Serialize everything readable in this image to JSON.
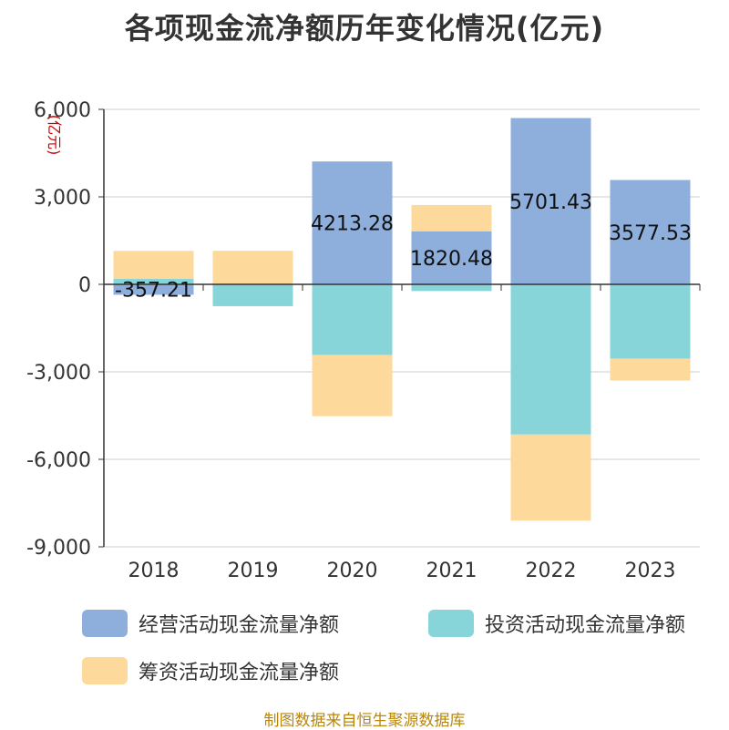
{
  "page_title": "各项现金流净额历年变化情况(亿元)",
  "source_note": "制图数据来自恒生聚源数据库",
  "colors": {
    "operating": "#8eaedb",
    "investing": "#87d4d9",
    "financing": "#fdd99b",
    "axis": "#333333",
    "grid": "#cccccc",
    "unit": "#cc0000"
  },
  "chart_data": {
    "type": "bar",
    "stacked": true,
    "title": "各项现金流净额历年变化情况(亿元)",
    "unit_label": "(亿元)",
    "categories": [
      "2018",
      "2019",
      "2020",
      "2021",
      "2022",
      "2023"
    ],
    "series": [
      {
        "name": "经营活动现金流量净额",
        "color_key": "operating",
        "values": [
          -357.21,
          -18,
          4213.28,
          1820.48,
          5701.43,
          3577.53
        ]
      },
      {
        "name": "投资活动现金流量净额",
        "color_key": "investing",
        "values": [
          195,
          -730,
          -2420,
          -230,
          -5150,
          -2550
        ]
      },
      {
        "name": "筹资活动现金流量净额",
        "color_key": "financing",
        "values": [
          950,
          1150,
          -2100,
          900,
          -2950,
          -750
        ]
      }
    ],
    "data_labels": [
      "-357.21",
      "",
      "4213.28",
      "1820.48",
      "5701.43",
      "3577.53"
    ],
    "ylim": [
      -9000,
      6000
    ],
    "yticks": [
      6000,
      3000,
      0,
      -3000,
      -6000,
      -9000
    ],
    "ytick_labels": [
      "6,000",
      "3,000",
      "0",
      "-3,000",
      "-6,000",
      "-9,000"
    ],
    "grid": true,
    "legend_position": "bottom"
  },
  "legend": [
    {
      "label": "经营活动现金流量净额",
      "color_key": "operating"
    },
    {
      "label": "投资活动现金流量净额",
      "color_key": "investing"
    },
    {
      "label": "筹资活动现金流量净额",
      "color_key": "financing"
    }
  ]
}
